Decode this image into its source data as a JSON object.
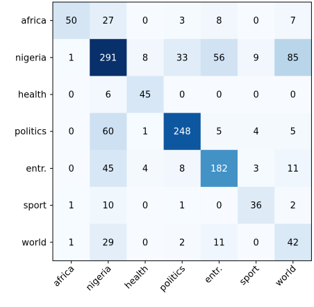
{
  "chart_data": {
    "type": "heatmap",
    "title": "",
    "xlabel": "",
    "ylabel": "",
    "row_labels": [
      "africa",
      "nigeria",
      "health",
      "politics",
      "entr.",
      "sport",
      "world"
    ],
    "col_labels": [
      "africa",
      "nigeria",
      "health",
      "politics",
      "entr.",
      "sport",
      "world"
    ],
    "values": [
      [
        50,
        27,
        0,
        3,
        8,
        0,
        7
      ],
      [
        1,
        291,
        8,
        33,
        56,
        9,
        85
      ],
      [
        0,
        6,
        45,
        0,
        0,
        0,
        0
      ],
      [
        0,
        60,
        1,
        248,
        5,
        4,
        5
      ],
      [
        0,
        45,
        4,
        8,
        182,
        3,
        11
      ],
      [
        1,
        10,
        0,
        1,
        0,
        36,
        2
      ],
      [
        1,
        29,
        0,
        2,
        11,
        0,
        42
      ]
    ],
    "colormap": "Blues",
    "vmin": 0,
    "vmax": 291,
    "text_color_dark_bg": "#ffffff",
    "text_color_light_bg": "#000000",
    "x_tick_rotation_deg": 45,
    "grid": false,
    "legend": "none"
  }
}
